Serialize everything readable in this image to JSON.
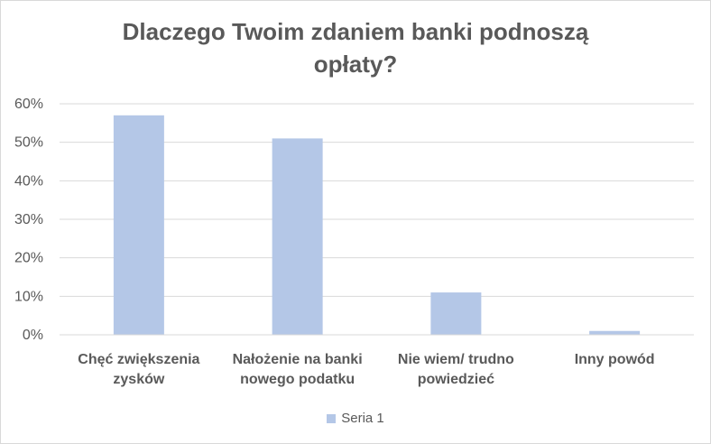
{
  "chart_data": {
    "type": "bar",
    "title": [
      "Dlaczego Twoim zdaniem banki podnoszą",
      "opłaty?"
    ],
    "categories": [
      [
        "Chęć zwiększenia",
        "zysków"
      ],
      [
        "Nałożenie na banki",
        "nowego podatku"
      ],
      [
        "Nie wiem/ trudno",
        "powiedzieć"
      ],
      [
        "Inny powód"
      ]
    ],
    "series": [
      {
        "name": "Seria 1",
        "values": [
          0.57,
          0.51,
          0.11,
          0.01
        ],
        "color": "#b4c7e7"
      }
    ],
    "ylim": [
      0,
      0.6
    ],
    "yticks": [
      "0%",
      "10%",
      "20%",
      "30%",
      "40%",
      "50%",
      "60%"
    ],
    "grid": true,
    "legend": "bottom"
  }
}
